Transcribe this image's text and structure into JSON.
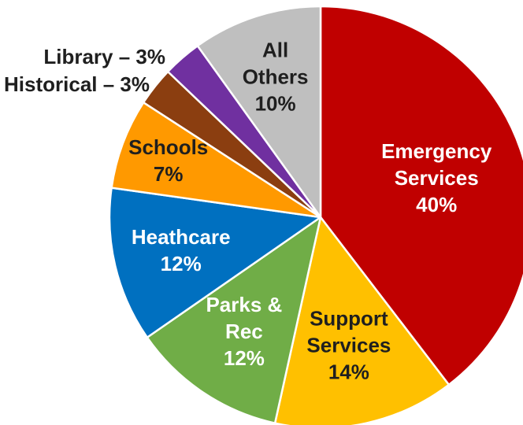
{
  "chart_data": {
    "type": "pie",
    "title": "",
    "legend": "none",
    "slices": [
      {
        "name": "Emergency Services",
        "value": 40,
        "label_lines": [
          "Emergency",
          "Services",
          "40%"
        ],
        "color": "#C00000",
        "text_color": "#ffffff"
      },
      {
        "name": "Support Services",
        "value": 14,
        "label_lines": [
          "Support",
          "Services",
          "14%"
        ],
        "color": "#FFC000",
        "text_color": "#1f1f1f"
      },
      {
        "name": "Parks & Rec",
        "value": 12,
        "label_lines": [
          "Parks &",
          "Rec",
          "12%"
        ],
        "color": "#70AD47",
        "text_color": "#ffffff"
      },
      {
        "name": "Heathcare",
        "value": 12,
        "label_lines": [
          "Heathcare",
          "12%"
        ],
        "color": "#0070C0",
        "text_color": "#ffffff"
      },
      {
        "name": "Schools",
        "value": 7,
        "label_lines": [
          "Schools",
          "7%"
        ],
        "color": "#FF9900",
        "text_color": "#1f1f1f"
      },
      {
        "name": "Historical",
        "value": 3,
        "label_lines": [
          "Historical – 3%"
        ],
        "color": "#8B3E10",
        "text_color": "#1f1f1f",
        "label_outside": true
      },
      {
        "name": "Library",
        "value": 3,
        "label_lines": [
          "Library – 3%"
        ],
        "color": "#7030A0",
        "text_color": "#1f1f1f",
        "label_outside": true
      },
      {
        "name": "All Others",
        "value": 10,
        "label_lines": [
          "All",
          "Others",
          "10%"
        ],
        "color": "#BFBFBF",
        "text_color": "#1f1f1f"
      }
    ]
  }
}
